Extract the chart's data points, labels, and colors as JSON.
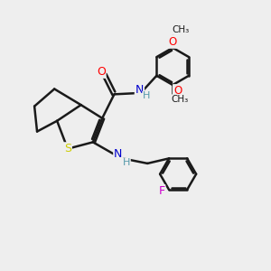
{
  "background_color": "#eeeeee",
  "bond_color": "#1a1a1a",
  "bond_width": 1.8,
  "atom_colors": {
    "O": "#ff0000",
    "N": "#0000cd",
    "S": "#cccc00",
    "F": "#cc00cc",
    "C": "#1a1a1a",
    "H": "#5599aa"
  },
  "figsize": [
    3.0,
    3.0
  ],
  "dpi": 100
}
